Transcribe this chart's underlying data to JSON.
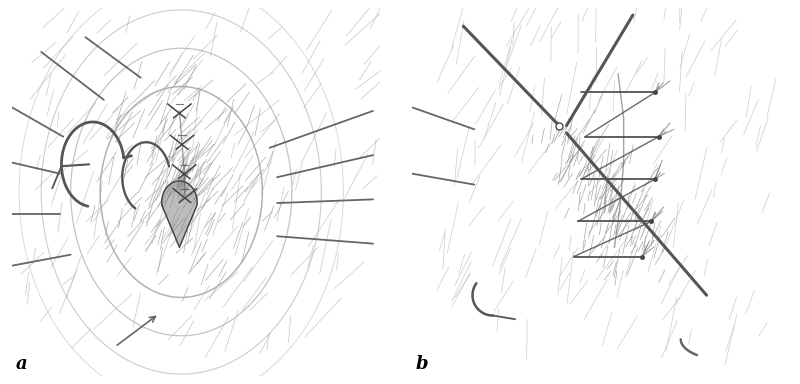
{
  "figure_width": 8.0,
  "figure_height": 3.84,
  "background_color": "#ffffff",
  "label_a": "a",
  "label_b": "b",
  "label_fontsize": 13,
  "label_fontweight": "bold",
  "line_color": "#666666",
  "dark_line_color": "#444444",
  "med_line_color": "#555555",
  "tissue_color": "#aaaaaa",
  "heavy_line_color": "#333333"
}
